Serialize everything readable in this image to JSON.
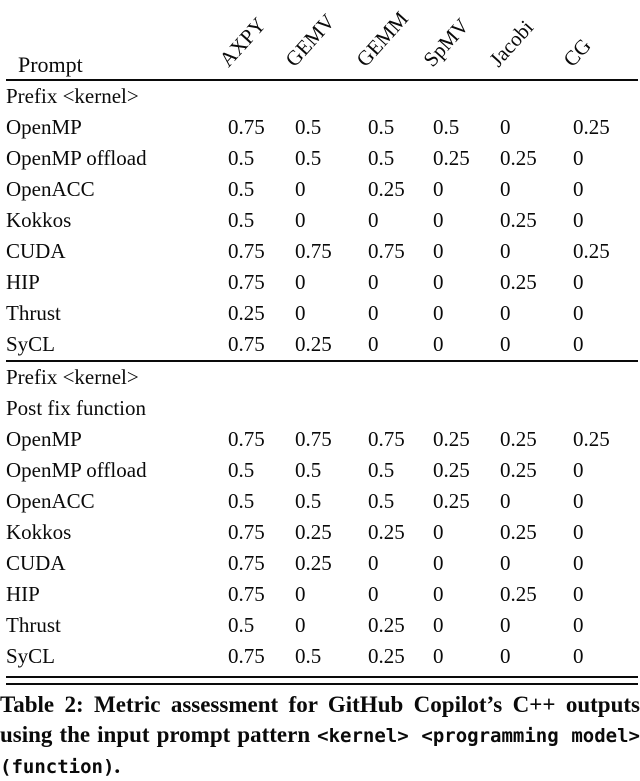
{
  "table": {
    "prompt_label": "Prompt",
    "columns": [
      "AXPY",
      "GEMV",
      "GEMM",
      "SpMV",
      "Jacobi",
      "CG"
    ],
    "sections": [
      {
        "title_lines": [
          "Prefix <kernel>"
        ],
        "rows": [
          {
            "label": "OpenMP",
            "values": [
              "0.75",
              "0.5",
              "0.5",
              "0.5",
              "0",
              "0.25"
            ]
          },
          {
            "label": "OpenMP offload",
            "values": [
              "0.5",
              "0.5",
              "0.5",
              "0.25",
              "0.25",
              "0"
            ]
          },
          {
            "label": "OpenACC",
            "values": [
              "0.5",
              "0",
              "0.25",
              "0",
              "0",
              "0"
            ]
          },
          {
            "label": "Kokkos",
            "values": [
              "0.5",
              "0",
              "0",
              "0",
              "0.25",
              "0"
            ]
          },
          {
            "label": "CUDA",
            "values": [
              "0.75",
              "0.75",
              "0.75",
              "0",
              "0",
              "0.25"
            ]
          },
          {
            "label": "HIP",
            "values": [
              "0.75",
              "0",
              "0",
              "0",
              "0.25",
              "0"
            ]
          },
          {
            "label": "Thrust",
            "values": [
              "0.25",
              "0",
              "0",
              "0",
              "0",
              "0"
            ]
          },
          {
            "label": "SyCL",
            "values": [
              "0.75",
              "0.25",
              "0",
              "0",
              "0",
              "0"
            ]
          }
        ]
      },
      {
        "title_lines": [
          "Prefix <kernel>",
          "Post fix function"
        ],
        "rows": [
          {
            "label": "OpenMP",
            "values": [
              "0.75",
              "0.75",
              "0.75",
              "0.25",
              "0.25",
              "0.25"
            ]
          },
          {
            "label": "OpenMP offload",
            "values": [
              "0.5",
              "0.5",
              "0.5",
              "0.25",
              "0.25",
              "0"
            ]
          },
          {
            "label": "OpenACC",
            "values": [
              "0.5",
              "0.5",
              "0.5",
              "0.25",
              "0",
              "0"
            ]
          },
          {
            "label": "Kokkos",
            "values": [
              "0.75",
              "0.25",
              "0.25",
              "0",
              "0.25",
              "0"
            ]
          },
          {
            "label": "CUDA",
            "values": [
              "0.75",
              "0.25",
              "0",
              "0",
              "0",
              "0"
            ]
          },
          {
            "label": "HIP",
            "values": [
              "0.75",
              "0",
              "0",
              "0",
              "0.25",
              "0"
            ]
          },
          {
            "label": "Thrust",
            "values": [
              "0.5",
              "0",
              "0.25",
              "0",
              "0",
              "0"
            ]
          },
          {
            "label": "SyCL",
            "values": [
              "0.75",
              "0.5",
              "0.25",
              "0",
              "0",
              "0"
            ]
          }
        ]
      }
    ]
  },
  "caption": {
    "part1": "Table 2: Metric assessment for GitHub Copilot’s C++ outputs using the input prompt pattern ",
    "mono1": "<kernel> <programming model>",
    "sep": " ",
    "mono2": "(function)",
    "period": "."
  }
}
